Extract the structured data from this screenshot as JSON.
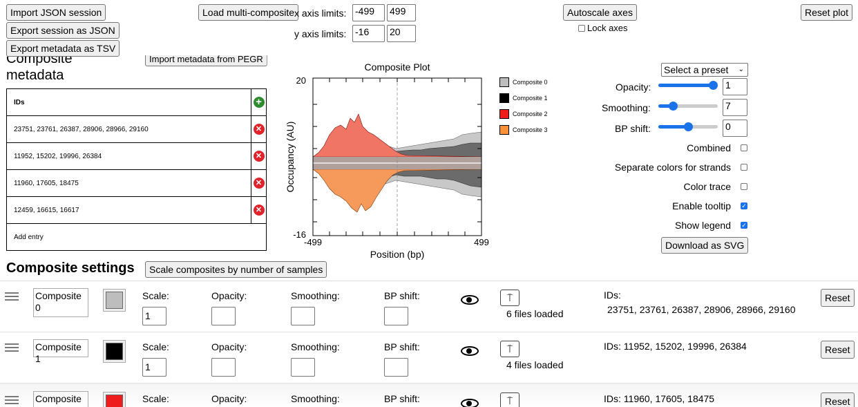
{
  "toolbar": {
    "import_json": "Import JSON session",
    "export_json": "Export session as JSON",
    "export_tsv": "Export metadata as TSV",
    "load_multi": "Load multi-composite",
    "x_axis_label": "x axis limits:",
    "x_min": "-499",
    "x_max": "499",
    "y_axis_label": "y axis limits:",
    "y_min": "-16",
    "y_max": "20",
    "autoscale": "Autoscale axes",
    "lock_axes": "Lock axes",
    "reset_plot": "Reset plot"
  },
  "metadata": {
    "title_line1": "Composite",
    "title_line2": "metadata",
    "import_pegr": "Import metadata from PEGR",
    "header": "IDs",
    "rows": [
      "23751, 23761, 26387, 28906, 28966, 29160",
      "11952, 15202, 19996, 26384",
      "11960, 17605, 18475",
      "12459, 16615, 16617"
    ],
    "add_entry": "Add entry"
  },
  "plot": {
    "title": "Composite Plot",
    "ylabel": "Occupancy (AU)",
    "xlabel": "Position (bp)",
    "xmin_label": "-499",
    "xmax_label": "499",
    "ymax_label": "20",
    "ymin_label": "-16"
  },
  "legend": [
    {
      "name": "Composite 0",
      "color": "#bdbdbd"
    },
    {
      "name": "Composite 1",
      "color": "#000000"
    },
    {
      "name": "Composite 2",
      "color": "#ee1c1c"
    },
    {
      "name": "Composite 3",
      "color": "#f7923a"
    }
  ],
  "controls": {
    "preset": "Select a preset",
    "opacity_label": "Opacity:",
    "opacity_value": "1",
    "opacity_level": 1.0,
    "smoothing_label": "Smoothing:",
    "smoothing_value": "7",
    "smoothing_level": 0.2,
    "bpshift_label": "BP shift:",
    "bpshift_value": "0",
    "bpshift_level": 0.5,
    "combined": "Combined",
    "separate": "Separate colors for strands",
    "color_trace": "Color trace",
    "tooltip": "Enable tooltip",
    "show_legend": "Show legend",
    "download": "Download as SVG"
  },
  "settings": {
    "title": "Composite settings",
    "scale_button": "Scale composites by number of samples",
    "scale_label": "Scale:",
    "opacity_label": "Opacity:",
    "smoothing_label": "Smoothing:",
    "bpshift_label": "BP shift:",
    "reset": "Reset",
    "upload_icon": "⍑",
    "rows": [
      {
        "name": "Composite 0",
        "color": "#bdbdbd",
        "scale": "1",
        "files": "6 files loaded",
        "ids_label": "IDs:",
        "ids": "23751, 23761, 26387, 28906, 28966, 29160"
      },
      {
        "name": "Composite 1",
        "color": "#000000",
        "scale": "1",
        "files": "4 files loaded",
        "ids_label": "IDs: 11952, 15202, 19996, 26384",
        "ids": ""
      },
      {
        "name": "Composite",
        "color": "#ee1c1c",
        "scale": "",
        "files": "",
        "ids_label": "IDs: 11960, 17605, 18475",
        "ids": ""
      }
    ]
  }
}
